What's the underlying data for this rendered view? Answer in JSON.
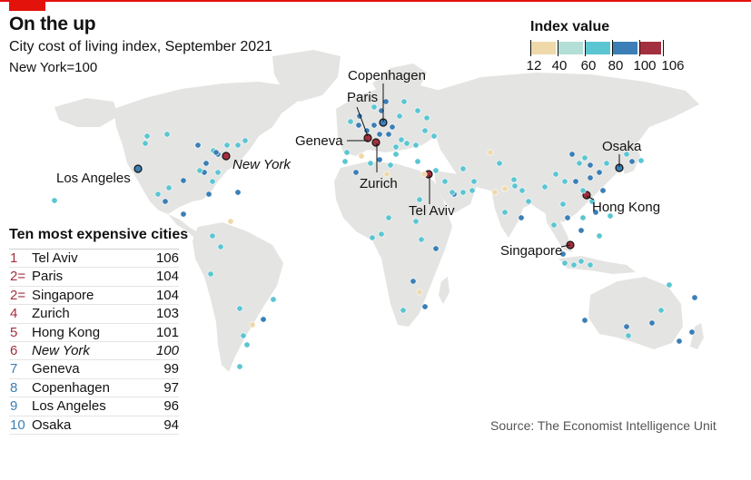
{
  "header": {
    "title": "On the up",
    "subtitle": "City cost of living index, September 2021",
    "note": "New York=100"
  },
  "legend": {
    "title": "Index value",
    "ticks": [
      "12",
      "40",
      "60",
      "80",
      "100",
      "106"
    ],
    "bins": [
      {
        "from": 12,
        "to": 40,
        "color": "#efd9a9"
      },
      {
        "from": 40,
        "to": 60,
        "color": "#b3dfd6"
      },
      {
        "from": 60,
        "to": 80,
        "color": "#5bc6d2"
      },
      {
        "from": 80,
        "to": 100,
        "color": "#3b7fb6"
      },
      {
        "from": 100,
        "to": 106,
        "color": "#a3303f"
      }
    ]
  },
  "table": {
    "title": "Ten most expensive cities",
    "rows": [
      {
        "rank": "1",
        "city": "Tel Aviv",
        "value": "106",
        "color": "#a3303f",
        "italic": false
      },
      {
        "rank": "2=",
        "city": "Paris",
        "value": "104",
        "color": "#a3303f",
        "italic": false
      },
      {
        "rank": "2=",
        "city": "Singapore",
        "value": "104",
        "color": "#a3303f",
        "italic": false
      },
      {
        "rank": "4",
        "city": "Zurich",
        "value": "103",
        "color": "#a3303f",
        "italic": false
      },
      {
        "rank": "5",
        "city": "Hong Kong",
        "value": "101",
        "color": "#a3303f",
        "italic": false
      },
      {
        "rank": "6",
        "city": "New York",
        "value": "100",
        "color": "#a3303f",
        "italic": true
      },
      {
        "rank": "7",
        "city": "Geneva",
        "value": "99",
        "color": "#3b7fb6",
        "italic": false
      },
      {
        "rank": "8",
        "city": "Copenhagen",
        "value": "97",
        "color": "#3b7fb6",
        "italic": false
      },
      {
        "rank": "9",
        "city": "Los Angeles",
        "value": "96",
        "color": "#3b7fb6",
        "italic": false
      },
      {
        "rank": "10",
        "city": "Osaka",
        "value": "94",
        "color": "#3b7fb6",
        "italic": false
      }
    ]
  },
  "map_labels": {
    "copenhagen": "Copenhagen",
    "paris": "Paris",
    "geneva": "Geneva",
    "zurich": "Zurich",
    "tel_aviv": "Tel Aviv",
    "new_york": "New York",
    "los_angeles": "Los Angeles",
    "osaka": "Osaka",
    "hong_kong": "Hong Kong",
    "singapore": "Singapore"
  },
  "source": "Source: The Economist Intelligence Unit",
  "colors": {
    "land": "#e4e4e2",
    "accent_red": "#e3120b"
  }
}
